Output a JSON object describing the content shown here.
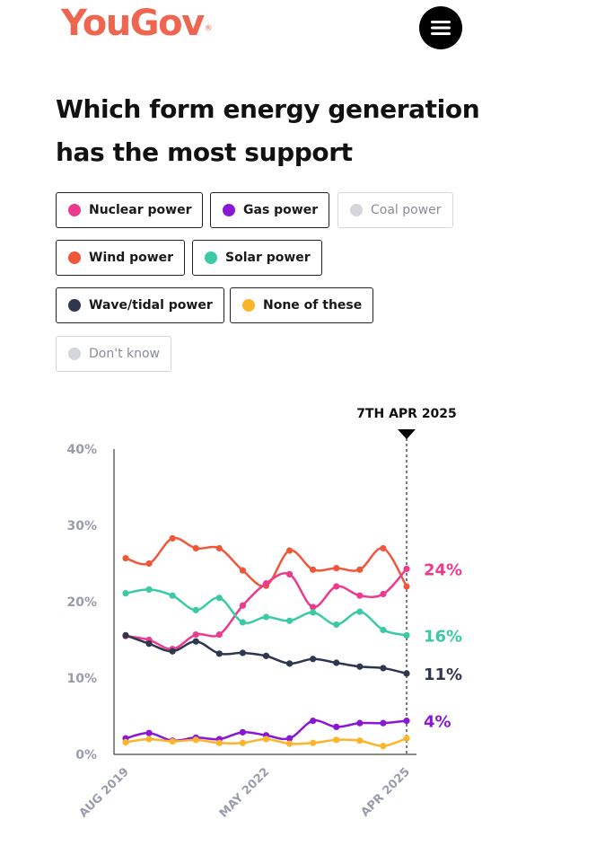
{
  "header": {
    "logo_text": "YouGov",
    "logo_mark": "®",
    "menu_icon": "menu-icon"
  },
  "title": "Which form energy generation has the most support",
  "legend": [
    {
      "key": "nuclear",
      "label": "Nuclear power",
      "color": "#ec3a8e",
      "active": true
    },
    {
      "key": "gas",
      "label": "Gas power",
      "color": "#8a17d6",
      "active": true
    },
    {
      "key": "coal",
      "label": "Coal power",
      "color": "#d5d5dc",
      "active": false
    },
    {
      "key": "wind",
      "label": "Wind power",
      "color": "#f0573a",
      "active": true
    },
    {
      "key": "solar",
      "label": "Solar power",
      "color": "#3ccaa4",
      "active": true
    },
    {
      "key": "wave",
      "label": "Wave/tidal power",
      "color": "#2e3650",
      "active": true
    },
    {
      "key": "none",
      "label": "None of these",
      "color": "#fbb52b",
      "active": true
    },
    {
      "key": "dontknow",
      "label": "Don't know",
      "color": "#d5d5dc",
      "active": false
    }
  ],
  "chart_data": {
    "type": "line",
    "xlabel": "",
    "ylabel": "",
    "ylim": [
      0,
      40
    ],
    "y_ticks": [
      "0%",
      "10%",
      "20%",
      "30%",
      "40%"
    ],
    "x_tick_labels": [
      {
        "label": "AUG 2019",
        "index": 0
      },
      {
        "label": "MAY 2022",
        "index": 6
      },
      {
        "label": "APR 2025",
        "index": 12
      }
    ],
    "x": [
      "Aug 2019",
      "",
      "",
      "",
      "",
      "",
      "May 2022",
      "",
      "",
      "",
      "",
      "",
      "Apr 2025"
    ],
    "marker_label": "7TH APR 2025",
    "grid": false,
    "series": [
      {
        "name": "Wind power",
        "key": "wind",
        "color": "#f0573a",
        "values": [
          25.7,
          25.0,
          28.3,
          27.0,
          27.0,
          24.1,
          22.1,
          26.7,
          24.2,
          24.4,
          24.2,
          27.0,
          22.0
        ],
        "end_label": ""
      },
      {
        "name": "Nuclear power",
        "key": "nuclear",
        "color": "#ec3a8e",
        "values": [
          15.5,
          15.0,
          13.8,
          15.7,
          15.7,
          19.5,
          22.4,
          23.6,
          19.3,
          22.0,
          20.8,
          21.0,
          24.3
        ],
        "end_label": "24%"
      },
      {
        "name": "Solar power",
        "key": "solar",
        "color": "#3ccaa4",
        "values": [
          21.1,
          21.6,
          20.8,
          18.9,
          20.5,
          17.3,
          18.0,
          17.5,
          18.6,
          17.0,
          18.7,
          16.3,
          15.6
        ],
        "end_label": "16%"
      },
      {
        "name": "Wave/tidal power",
        "key": "wave",
        "color": "#2e3650",
        "values": [
          15.6,
          14.5,
          13.5,
          14.8,
          13.2,
          13.3,
          12.9,
          11.9,
          12.5,
          12.0,
          11.5,
          11.3,
          10.6
        ],
        "end_label": "11%"
      },
      {
        "name": "Gas power",
        "key": "gas",
        "color": "#8a17d6",
        "values": [
          2.1,
          2.8,
          1.8,
          2.2,
          2.0,
          2.9,
          2.5,
          2.1,
          4.4,
          3.6,
          4.1,
          4.1,
          4.4
        ],
        "end_label": "4%"
      },
      {
        "name": "None of these",
        "key": "none",
        "color": "#fbb52b",
        "values": [
          1.6,
          2.0,
          1.7,
          1.9,
          1.5,
          1.5,
          2.0,
          1.4,
          1.5,
          1.9,
          1.8,
          1.1,
          2.1
        ],
        "end_label": ""
      }
    ]
  }
}
